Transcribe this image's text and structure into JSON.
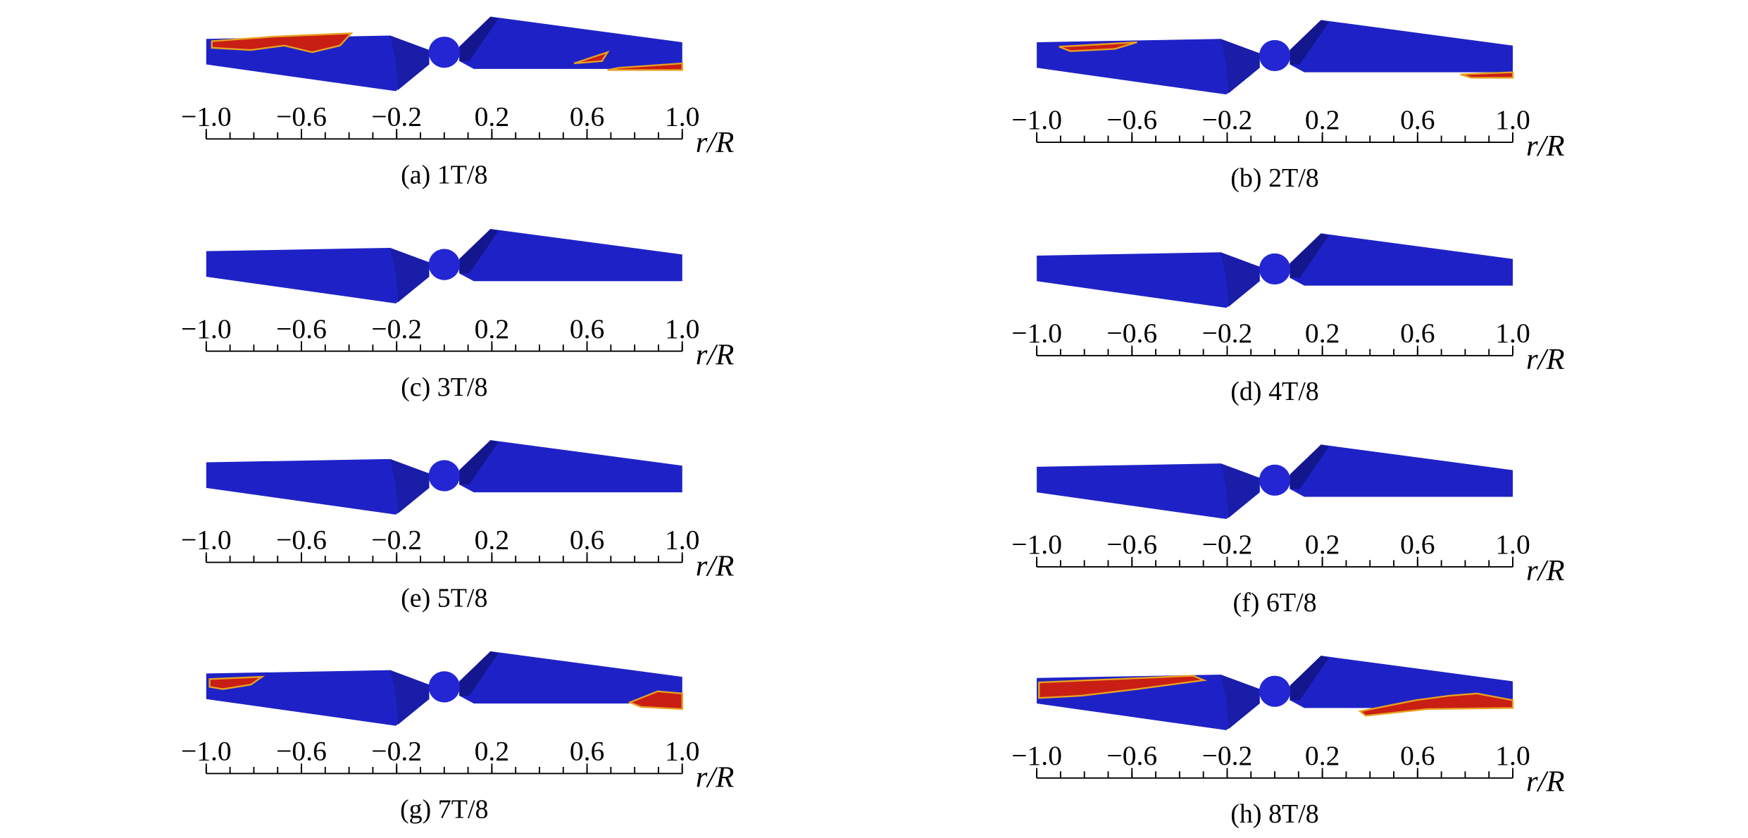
{
  "axis": {
    "xlim": [
      -1,
      1
    ],
    "xticks": [
      {
        "value": -1,
        "label": "−1.0"
      },
      {
        "value": -0.6,
        "label": "−0.6"
      },
      {
        "value": -0.2,
        "label": "−0.2"
      },
      0.2,
      0.6,
      {
        "value": 1,
        "label": "1.0"
      }
    ],
    "label": "r/R"
  },
  "panels": [
    {
      "caption": "(a) 1T/8"
    },
    {
      "caption": "(b) 2T/8"
    },
    {
      "caption": "(c) 3T/8"
    },
    {
      "caption": "(d) 4T/8"
    },
    {
      "caption": "(e) 5T/8"
    },
    {
      "caption": "(f) 6T/8"
    },
    {
      "caption": "(g) 7T/8"
    },
    {
      "caption": "(h) 8T/8"
    }
  ]
}
